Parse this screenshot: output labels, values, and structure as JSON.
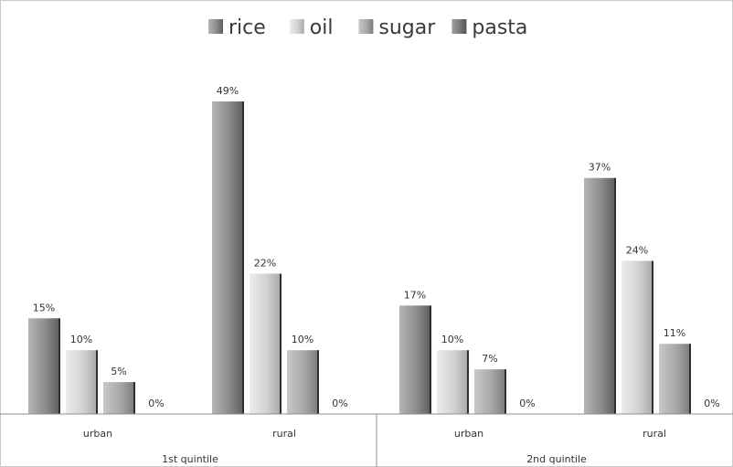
{
  "chart_data": {
    "type": "bar",
    "groups": [
      {
        "label": "1st quintile",
        "categories": [
          "urban",
          "rural"
        ]
      },
      {
        "label": "2nd quintile",
        "categories": [
          "urban",
          "rural"
        ]
      }
    ],
    "categories": [
      "urban",
      "rural",
      "urban",
      "rural"
    ],
    "series": [
      {
        "name": "rice",
        "values": [
          15,
          49,
          17,
          37
        ],
        "labels": [
          "15%",
          "49%",
          "17%",
          "37%"
        ],
        "color": "#8c8c8c"
      },
      {
        "name": "oil",
        "values": [
          10,
          22,
          10,
          24
        ],
        "labels": [
          "10%",
          "22%",
          "10%",
          "24%"
        ],
        "color": "#d2d2d2"
      },
      {
        "name": "sugar",
        "values": [
          5,
          10,
          7,
          11
        ],
        "labels": [
          "5%",
          "10%",
          "7%",
          "11%"
        ],
        "color": "#a8a8a8"
      },
      {
        "name": "pasta",
        "values": [
          0,
          0,
          0,
          0
        ],
        "labels": [
          "0%",
          "0%",
          "0%",
          "0%"
        ],
        "color": "#7a7a7a"
      }
    ],
    "ylim": [
      0,
      50
    ],
    "legend_position": "top",
    "grid": false,
    "unit": "%"
  }
}
